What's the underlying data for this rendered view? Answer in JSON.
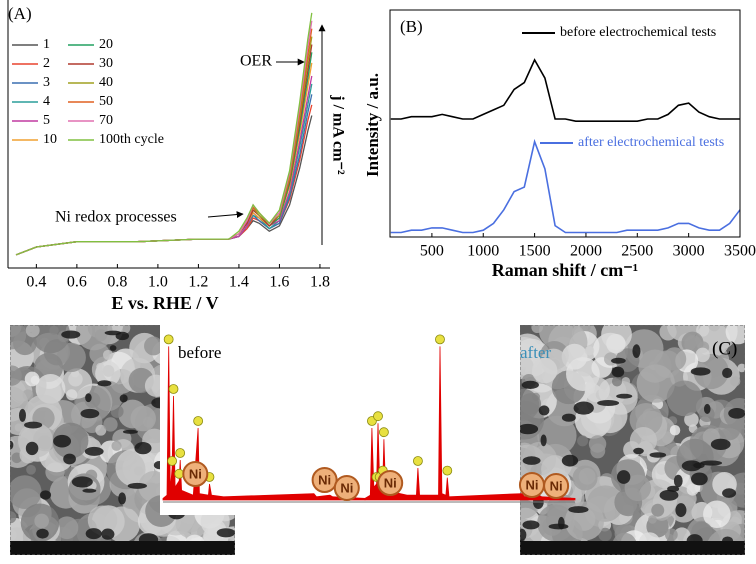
{
  "chart_data": [
    {
      "type": "line",
      "panel": "(A)",
      "xlabel": "E vs. RHE / V",
      "ylabel": "j / mA cm⁻²",
      "xlim": [
        0.26,
        1.82
      ],
      "ylim": [
        0,
        100
      ],
      "xticks": [
        0.4,
        0.6,
        0.8,
        {
          "value": 1,
          "label": "1.0"
        },
        1.2,
        1.4,
        1.6,
        1.8
      ],
      "x": [
        0.3,
        0.4,
        0.6,
        0.9,
        1.2,
        1.35,
        1.4,
        1.44,
        1.47,
        1.5,
        1.55,
        1.6,
        1.65,
        1.7,
        1.74,
        1.76
      ],
      "annotations": [
        "OER",
        "Ni redox processes"
      ],
      "series": [
        {
          "name": "1",
          "color": "#555555",
          "values": [
            5,
            8,
            10,
            10,
            11,
            11,
            12,
            15,
            18,
            17,
            14,
            16,
            24,
            38,
            52,
            58
          ]
        },
        {
          "name": "2",
          "color": "#e8432f",
          "values": [
            5,
            8,
            10,
            10,
            11,
            11,
            12,
            15,
            19,
            18,
            15,
            17,
            26,
            41,
            56,
            62
          ]
        },
        {
          "name": "3",
          "color": "#3a6fb0",
          "values": [
            5,
            8,
            10,
            10,
            11,
            11,
            12,
            16,
            20,
            18,
            15,
            17,
            27,
            43,
            59,
            66
          ]
        },
        {
          "name": "4",
          "color": "#2a9d9a",
          "values": [
            5,
            8,
            10,
            10,
            11,
            11,
            12,
            16,
            20,
            19,
            15,
            18,
            28,
            46,
            62,
            70
          ]
        },
        {
          "name": "5",
          "color": "#c03aa0",
          "values": [
            5,
            8,
            10,
            10,
            11,
            11,
            12,
            16,
            21,
            19,
            16,
            18,
            29,
            48,
            65,
            73
          ]
        },
        {
          "name": "10",
          "color": "#f0a030",
          "values": [
            5,
            8,
            10,
            10,
            11,
            11,
            13,
            17,
            21,
            19,
            16,
            19,
            31,
            51,
            69,
            78
          ]
        },
        {
          "name": "20",
          "color": "#22a060",
          "values": [
            5,
            8,
            10,
            10,
            11,
            11,
            13,
            17,
            22,
            20,
            16,
            19,
            32,
            53,
            72,
            82
          ]
        },
        {
          "name": "30",
          "color": "#b03a2e",
          "values": [
            5,
            8,
            10,
            10,
            11,
            11,
            13,
            17,
            22,
            20,
            16,
            20,
            33,
            55,
            75,
            85
          ]
        },
        {
          "name": "40",
          "color": "#a0a020",
          "values": [
            5,
            8,
            10,
            10,
            11,
            11,
            13,
            18,
            23,
            20,
            17,
            20,
            34,
            57,
            78,
            88
          ]
        },
        {
          "name": "50",
          "color": "#e06020",
          "values": [
            5,
            8,
            10,
            10,
            11,
            11,
            13,
            18,
            23,
            21,
            17,
            21,
            35,
            59,
            81,
            91
          ]
        },
        {
          "name": "70",
          "color": "#e070b0",
          "values": [
            5,
            8,
            10,
            10,
            11,
            11,
            13,
            18,
            24,
            21,
            17,
            21,
            36,
            61,
            84,
            94
          ]
        },
        {
          "name": "100th cycle",
          "color": "#80c040",
          "values": [
            5,
            8,
            10,
            10,
            11,
            11,
            14,
            19,
            24,
            21,
            17,
            22,
            37,
            63,
            87,
            97
          ]
        }
      ]
    },
    {
      "type": "line",
      "panel": "(B)",
      "xlabel": "Raman shift / cm⁻¹",
      "ylabel": "Intensity / a.u.",
      "xlim": [
        92,
        3500
      ],
      "ylim": [
        0,
        100
      ],
      "xticks": [
        500,
        1000,
        1500,
        2000,
        2500,
        3000,
        3500
      ],
      "x": [
        100,
        200,
        300,
        400,
        500,
        600,
        700,
        800,
        900,
        1000,
        1100,
        1200,
        1300,
        1400,
        1500,
        1600,
        1700,
        1800,
        1900,
        2000,
        2100,
        2200,
        2300,
        2400,
        2500,
        2600,
        2700,
        2800,
        2900,
        3000,
        3100,
        3200,
        3300,
        3400,
        3500
      ],
      "series": [
        {
          "name": "before electrochemical tests",
          "color": "#000000",
          "values": [
            52,
            52,
            53,
            53,
            53,
            54,
            53,
            52,
            52,
            54,
            56,
            58,
            65,
            68,
            78,
            70,
            52,
            52,
            51,
            51,
            51,
            51,
            51,
            51,
            51,
            52,
            52,
            54,
            58,
            59,
            55,
            53,
            52,
            52,
            52
          ]
        },
        {
          "name": "after electrochemical tests",
          "color": "#4a6fe0",
          "values": [
            2,
            2,
            3,
            3,
            4,
            4,
            3,
            2,
            2,
            3,
            6,
            12,
            20,
            22,
            42,
            30,
            5,
            2,
            2,
            2,
            2,
            2,
            2,
            3,
            3,
            3,
            3,
            4,
            6,
            6,
            4,
            3,
            3,
            6,
            12
          ]
        }
      ]
    },
    {
      "type": "area",
      "label": "before",
      "label_color": "#000000",
      "color": "#e00000",
      "xlim": [
        0,
        10
      ],
      "ylim": [
        0,
        100
      ],
      "x": [
        0,
        0.2,
        0.28,
        0.36,
        0.45,
        0.52,
        0.6,
        0.8,
        0.85,
        0.92,
        1.5,
        1.74,
        1.8,
        2.25,
        2.3,
        2.4,
        3,
        7.47,
        7.6,
        8.26,
        8.4,
        10
      ],
      "values": [
        1,
        3,
        96,
        6,
        20,
        65,
        8,
        12,
        25,
        6,
        3,
        45,
        4,
        3,
        10,
        3,
        2,
        4,
        2,
        3,
        2,
        1
      ],
      "annotations": [
        "Ni",
        "Ni",
        "Ni"
      ]
    },
    {
      "type": "area",
      "label": "after",
      "label_color": "#3a8fb8",
      "color": "#e00000",
      "xlim": [
        0,
        10
      ],
      "ylim": [
        0,
        100
      ],
      "x": [
        0,
        0.25,
        0.33,
        0.42,
        0.55,
        0.62,
        0.7,
        0.85,
        0.9,
        0.98,
        2.0,
        2.45,
        2.52,
        2.6,
        3.5,
        3.57,
        3.66,
        3.85,
        3.92,
        4.0,
        7.47,
        7.6,
        8.26,
        8.4,
        10
      ],
      "values": [
        1,
        3,
        45,
        8,
        10,
        48,
        10,
        14,
        38,
        6,
        3,
        3,
        20,
        3,
        3,
        96,
        4,
        3,
        14,
        2,
        4,
        2,
        3,
        2,
        1
      ],
      "annotations": [
        "Ni",
        "Ni",
        "Ni"
      ]
    }
  ],
  "figure": {
    "panel_c": "(C)"
  }
}
